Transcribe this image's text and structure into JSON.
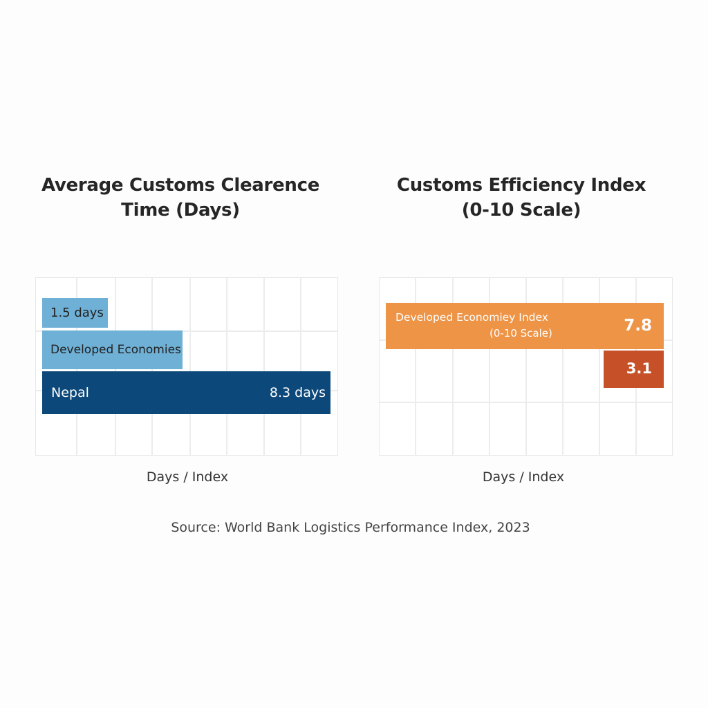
{
  "chart_data": [
    {
      "type": "bar",
      "orientation": "horizontal",
      "title": "Average Customs Clearence Time (Days)",
      "title_lines": [
        "Average Customs Clearence",
        "Time (Days)"
      ],
      "xlabel": "Days / Index",
      "grid": true,
      "bars": [
        {
          "label": "1.5 days",
          "value": 1.5,
          "color": "#6fb0d6"
        },
        {
          "label": "Developed Economies",
          "color": "#6fb0d6"
        },
        {
          "label": "Nepal",
          "value": 8.3,
          "value_label": "8.3 days",
          "color": "#0c4879"
        }
      ]
    },
    {
      "type": "bar",
      "orientation": "horizontal",
      "title": "Customs Efficiency Index (0-10 Scale)",
      "title_lines": [
        "Customs Efficiency Index",
        "(0-10 Scale)"
      ],
      "xlabel": "Days / Index",
      "grid": true,
      "bars": [
        {
          "label": "Developed Economiey Index",
          "sublabel": "(0-10 Scale)",
          "value": 7.8,
          "value_label": "7.8",
          "color": "#ed9446"
        },
        {
          "value": 3.1,
          "value_label": "3.1",
          "color": "#c65128"
        }
      ]
    }
  ],
  "source": "Source: World Bank Logistics Performance Index, 2023"
}
